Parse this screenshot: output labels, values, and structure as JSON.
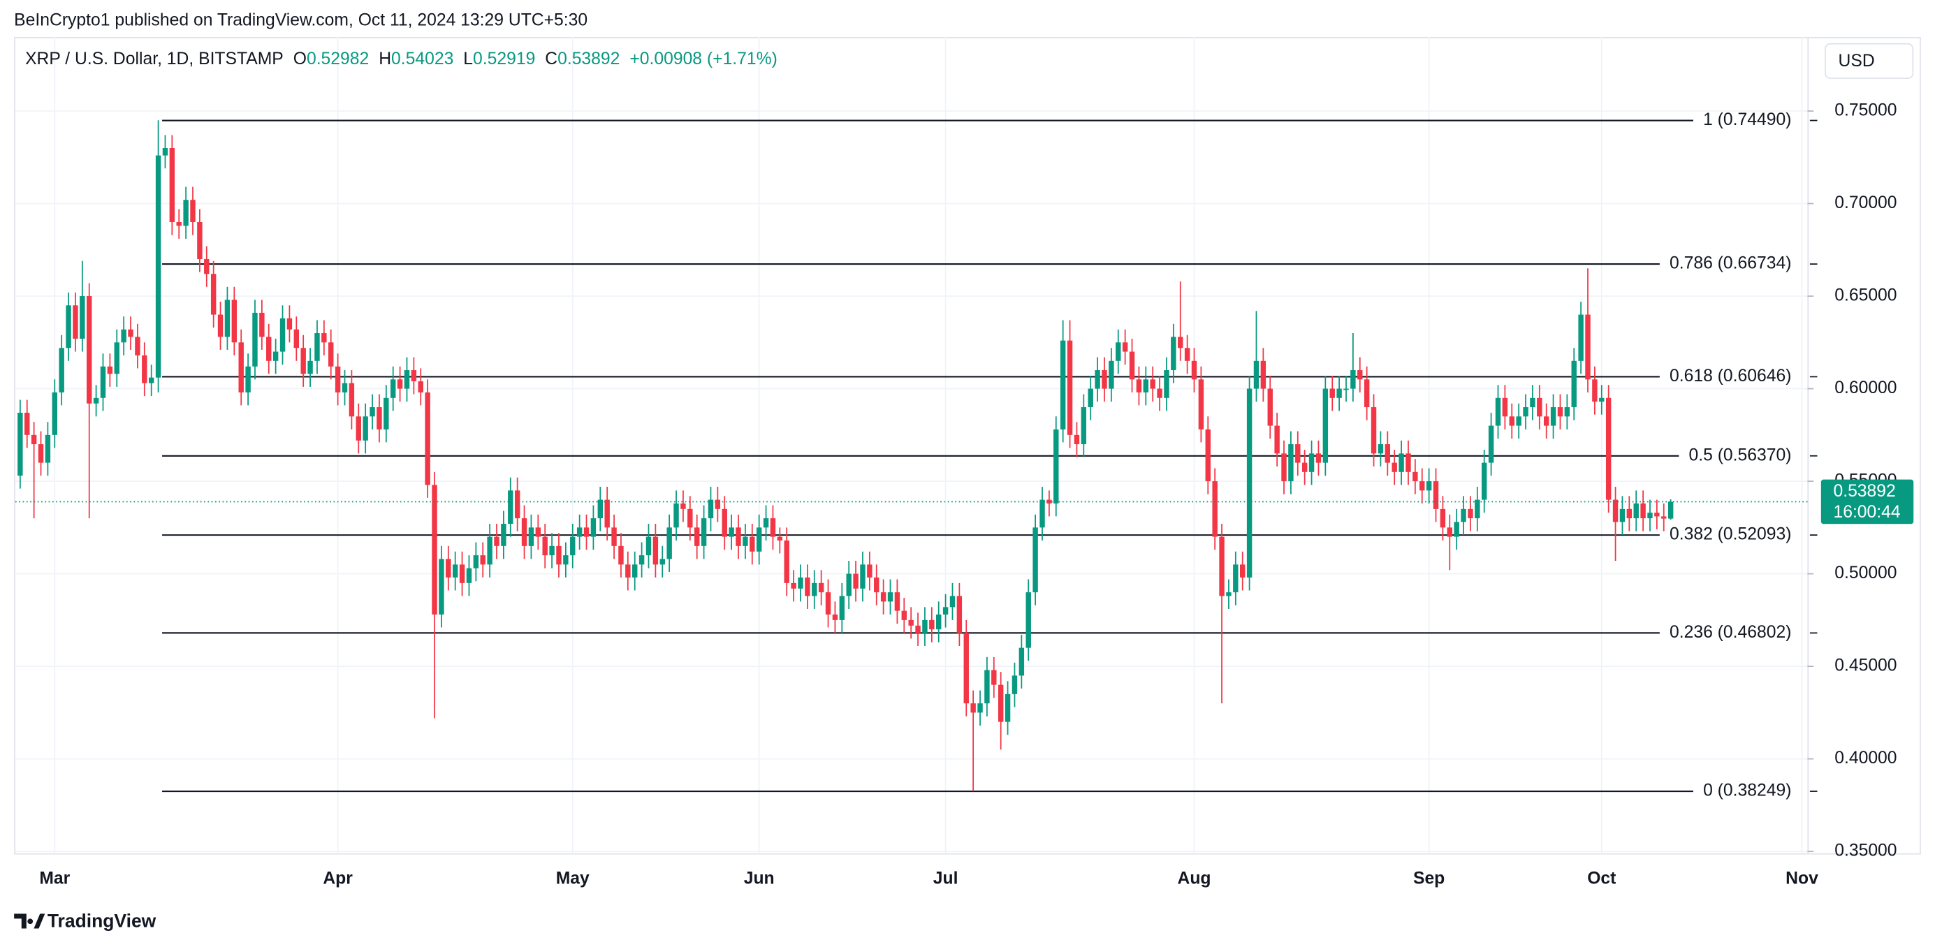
{
  "header": {
    "published": "BeInCrypto1 published on TradingView.com, Oct 11, 2024 13:29 UTC+5:30",
    "currency_button": "USD",
    "brand": "TradingView"
  },
  "legend": {
    "symbol": "XRP / U.S. Dollar, 1D, BITSTAMP",
    "o": "O",
    "h": "H",
    "l": "L",
    "c": "C",
    "change": "+0.00908 (+1.71%)"
  },
  "chart_data": {
    "type": "candlestick",
    "up_color": "#089981",
    "down_color": "#f23645",
    "xlim": [
      -0.7,
      258.8
    ],
    "xticks": [
      {
        "value": 5,
        "label": "Mar"
      },
      {
        "value": 46,
        "label": "Apr"
      },
      {
        "value": 80,
        "label": "May"
      },
      {
        "value": 107,
        "label": "Jun"
      },
      {
        "value": 134,
        "label": "Jul"
      },
      {
        "value": 170,
        "label": "Aug"
      },
      {
        "value": 204,
        "label": "Sep"
      },
      {
        "value": 229,
        "label": "Oct"
      },
      {
        "value": 258,
        "label": "Nov"
      }
    ],
    "ylim": [
      0.349,
      0.79
    ],
    "yticks": [
      {
        "value": 0.35,
        "label": "0.35000"
      },
      {
        "value": 0.4,
        "label": "0.40000"
      },
      {
        "value": 0.45,
        "label": "0.45000"
      },
      {
        "value": 0.5,
        "label": "0.50000"
      },
      {
        "value": 0.55,
        "label": "0.55000"
      },
      {
        "value": 0.6,
        "label": "0.60000"
      },
      {
        "value": 0.65,
        "label": "0.65000"
      },
      {
        "value": 0.7,
        "label": "0.70000"
      },
      {
        "value": 0.75,
        "label": "0.75000"
      }
    ],
    "grid": true,
    "fib_levels": [
      {
        "value": 0.7449,
        "label": "1 (0.74490)"
      },
      {
        "value": 0.66734,
        "label": "0.786 (0.66734)"
      },
      {
        "value": 0.60646,
        "label": "0.618 (0.60646)"
      },
      {
        "value": 0.5637,
        "label": "0.5 (0.56370)"
      },
      {
        "value": 0.52093,
        "label": "0.382 (0.52093)"
      },
      {
        "value": 0.46802,
        "label": "0.236 (0.46802)"
      },
      {
        "value": 0.38249,
        "label": "0 (0.38249)"
      }
    ],
    "countdown": "16:00:44",
    "close": [
      0.587,
      0.575,
      0.57,
      0.56,
      0.575,
      0.598,
      0.622,
      0.645,
      0.627,
      0.65,
      0.592,
      0.595,
      0.612,
      0.608,
      0.625,
      0.632,
      0.628,
      0.618,
      0.603,
      0.606,
      0.726,
      0.73,
      0.69,
      0.688,
      0.702,
      0.69,
      0.67,
      0.662,
      0.64,
      0.628,
      0.648,
      0.625,
      0.598,
      0.612,
      0.641,
      0.628,
      0.615,
      0.62,
      0.638,
      0.632,
      0.622,
      0.608,
      0.615,
      0.63,
      0.625,
      0.612,
      0.598,
      0.603,
      0.585,
      0.572,
      0.585,
      0.59,
      0.578,
      0.595,
      0.605,
      0.6,
      0.61,
      0.604,
      0.598,
      0.548,
      0.478,
      0.508,
      0.498,
      0.505,
      0.495,
      0.503,
      0.51,
      0.505,
      0.52,
      0.515,
      0.527,
      0.545,
      0.53,
      0.515,
      0.525,
      0.52,
      0.51,
      0.515,
      0.505,
      0.51,
      0.52,
      0.525,
      0.52,
      0.53,
      0.54,
      0.525,
      0.515,
      0.505,
      0.498,
      0.505,
      0.51,
      0.52,
      0.505,
      0.508,
      0.525,
      0.538,
      0.535,
      0.525,
      0.515,
      0.53,
      0.54,
      0.535,
      0.52,
      0.525,
      0.515,
      0.52,
      0.512,
      0.525,
      0.53,
      0.52,
      0.518,
      0.495,
      0.492,
      0.498,
      0.488,
      0.495,
      0.49,
      0.478,
      0.475,
      0.488,
      0.5,
      0.492,
      0.505,
      0.498,
      0.49,
      0.485,
      0.49,
      0.48,
      0.475,
      0.472,
      0.468,
      0.475,
      0.47,
      0.478,
      0.482,
      0.488,
      0.468,
      0.43,
      0.425,
      0.43,
      0.448,
      0.44,
      0.42,
      0.435,
      0.445,
      0.46,
      0.49,
      0.525,
      0.54,
      0.538,
      0.578,
      0.626,
      0.575,
      0.57,
      0.59,
      0.6,
      0.61,
      0.6,
      0.615,
      0.625,
      0.62,
      0.605,
      0.598,
      0.605,
      0.6,
      0.595,
      0.61,
      0.628,
      0.622,
      0.615,
      0.605,
      0.578,
      0.55,
      0.52,
      0.488,
      0.49,
      0.505,
      0.498,
      0.6,
      0.615,
      0.6,
      0.58,
      0.565,
      0.55,
      0.57,
      0.56,
      0.555,
      0.565,
      0.56,
      0.6,
      0.595,
      0.6,
      0.6,
      0.61,
      0.605,
      0.59,
      0.565,
      0.57,
      0.56,
      0.555,
      0.565,
      0.555,
      0.55,
      0.545,
      0.55,
      0.535,
      0.525,
      0.52,
      0.528,
      0.535,
      0.53,
      0.54,
      0.56,
      0.58,
      0.595,
      0.585,
      0.58,
      0.585,
      0.59,
      0.595,
      0.585,
      0.58,
      0.59,
      0.585,
      0.59,
      0.615,
      0.64,
      0.605,
      0.593,
      0.595,
      0.54,
      0.528,
      0.535,
      0.53,
      0.538,
      0.53,
      0.533,
      0.531,
      0.52982,
      0.53892
    ],
    "open": [
      0.553,
      0.587,
      0.575,
      0.57,
      0.56,
      0.575,
      0.598,
      0.622,
      0.645,
      0.627,
      0.65,
      0.592,
      0.595,
      0.612,
      0.608,
      0.625,
      0.632,
      0.628,
      0.618,
      0.603,
      0.606,
      0.726,
      0.73,
      0.69,
      0.688,
      0.702,
      0.69,
      0.67,
      0.662,
      0.64,
      0.628,
      0.648,
      0.625,
      0.598,
      0.612,
      0.641,
      0.628,
      0.615,
      0.62,
      0.638,
      0.632,
      0.622,
      0.608,
      0.615,
      0.63,
      0.625,
      0.612,
      0.598,
      0.603,
      0.585,
      0.572,
      0.585,
      0.59,
      0.578,
      0.595,
      0.605,
      0.6,
      0.61,
      0.604,
      0.598,
      0.548,
      0.478,
      0.508,
      0.498,
      0.505,
      0.495,
      0.503,
      0.51,
      0.505,
      0.52,
      0.515,
      0.527,
      0.545,
      0.53,
      0.515,
      0.525,
      0.52,
      0.51,
      0.515,
      0.505,
      0.51,
      0.52,
      0.525,
      0.52,
      0.53,
      0.54,
      0.525,
      0.515,
      0.505,
      0.498,
      0.505,
      0.51,
      0.52,
      0.505,
      0.508,
      0.525,
      0.538,
      0.535,
      0.525,
      0.515,
      0.53,
      0.54,
      0.535,
      0.52,
      0.525,
      0.515,
      0.52,
      0.512,
      0.525,
      0.53,
      0.52,
      0.518,
      0.495,
      0.492,
      0.498,
      0.488,
      0.495,
      0.49,
      0.478,
      0.475,
      0.488,
      0.5,
      0.492,
      0.505,
      0.498,
      0.49,
      0.485,
      0.49,
      0.48,
      0.475,
      0.472,
      0.468,
      0.475,
      0.47,
      0.478,
      0.482,
      0.488,
      0.468,
      0.43,
      0.425,
      0.43,
      0.448,
      0.44,
      0.42,
      0.435,
      0.445,
      0.46,
      0.49,
      0.525,
      0.54,
      0.538,
      0.578,
      0.626,
      0.575,
      0.57,
      0.59,
      0.6,
      0.61,
      0.6,
      0.615,
      0.625,
      0.62,
      0.605,
      0.598,
      0.605,
      0.6,
      0.595,
      0.61,
      0.628,
      0.622,
      0.615,
      0.605,
      0.578,
      0.55,
      0.52,
      0.488,
      0.49,
      0.505,
      0.498,
      0.6,
      0.615,
      0.6,
      0.58,
      0.565,
      0.55,
      0.57,
      0.56,
      0.555,
      0.565,
      0.56,
      0.6,
      0.595,
      0.6,
      0.6,
      0.61,
      0.605,
      0.59,
      0.565,
      0.57,
      0.56,
      0.555,
      0.565,
      0.555,
      0.55,
      0.545,
      0.55,
      0.535,
      0.525,
      0.52,
      0.528,
      0.535,
      0.53,
      0.54,
      0.56,
      0.58,
      0.595,
      0.585,
      0.58,
      0.585,
      0.59,
      0.595,
      0.585,
      0.58,
      0.59,
      0.585,
      0.59,
      0.615,
      0.64,
      0.605,
      0.593,
      0.595,
      0.54,
      0.528,
      0.535,
      0.53,
      0.538,
      0.53,
      0.533,
      0.531,
      0.52982
    ],
    "high": [
      0.594,
      0.594,
      0.582,
      0.577,
      0.582,
      0.605,
      0.629,
      0.652,
      0.652,
      0.669,
      0.657,
      0.602,
      0.619,
      0.619,
      0.632,
      0.639,
      0.639,
      0.635,
      0.625,
      0.613,
      0.745,
      0.737,
      0.737,
      0.697,
      0.709,
      0.709,
      0.697,
      0.677,
      0.669,
      0.647,
      0.655,
      0.655,
      0.632,
      0.619,
      0.648,
      0.648,
      0.635,
      0.627,
      0.645,
      0.645,
      0.639,
      0.629,
      0.622,
      0.637,
      0.637,
      0.632,
      0.619,
      0.61,
      0.61,
      0.592,
      0.592,
      0.597,
      0.597,
      0.602,
      0.612,
      0.612,
      0.617,
      0.617,
      0.611,
      0.605,
      0.555,
      0.515,
      0.515,
      0.512,
      0.512,
      0.51,
      0.517,
      0.517,
      0.527,
      0.527,
      0.534,
      0.552,
      0.552,
      0.537,
      0.532,
      0.532,
      0.527,
      0.522,
      0.522,
      0.517,
      0.527,
      0.532,
      0.532,
      0.537,
      0.547,
      0.547,
      0.532,
      0.522,
      0.512,
      0.512,
      0.517,
      0.527,
      0.527,
      0.515,
      0.532,
      0.545,
      0.545,
      0.542,
      0.532,
      0.537,
      0.547,
      0.547,
      0.542,
      0.532,
      0.532,
      0.527,
      0.527,
      0.532,
      0.537,
      0.537,
      0.525,
      0.525,
      0.502,
      0.505,
      0.505,
      0.502,
      0.502,
      0.497,
      0.485,
      0.495,
      0.507,
      0.507,
      0.512,
      0.512,
      0.505,
      0.497,
      0.497,
      0.497,
      0.487,
      0.482,
      0.479,
      0.482,
      0.482,
      0.485,
      0.489,
      0.495,
      0.495,
      0.475,
      0.437,
      0.437,
      0.455,
      0.455,
      0.447,
      0.442,
      0.452,
      0.467,
      0.497,
      0.532,
      0.547,
      0.545,
      0.585,
      0.637,
      0.637,
      0.582,
      0.597,
      0.607,
      0.617,
      0.617,
      0.622,
      0.632,
      0.632,
      0.627,
      0.612,
      0.612,
      0.612,
      0.607,
      0.617,
      0.635,
      0.658,
      0.629,
      0.622,
      0.612,
      0.585,
      0.557,
      0.527,
      0.497,
      0.512,
      0.512,
      0.607,
      0.642,
      0.622,
      0.607,
      0.587,
      0.572,
      0.577,
      0.577,
      0.567,
      0.572,
      0.572,
      0.607,
      0.607,
      0.607,
      0.607,
      0.63,
      0.617,
      0.612,
      0.597,
      0.577,
      0.577,
      0.567,
      0.572,
      0.572,
      0.562,
      0.557,
      0.557,
      0.557,
      0.542,
      0.532,
      0.535,
      0.542,
      0.542,
      0.547,
      0.567,
      0.587,
      0.602,
      0.602,
      0.592,
      0.592,
      0.597,
      0.602,
      0.602,
      0.592,
      0.597,
      0.597,
      0.597,
      0.622,
      0.647,
      0.665,
      0.612,
      0.602,
      0.602,
      0.547,
      0.542,
      0.542,
      0.545,
      0.545,
      0.54,
      0.54,
      0.538,
      0.54023
    ],
    "low": [
      0.546,
      0.568,
      0.53,
      0.553,
      0.553,
      0.568,
      0.591,
      0.615,
      0.62,
      0.62,
      0.53,
      0.585,
      0.588,
      0.601,
      0.601,
      0.618,
      0.621,
      0.611,
      0.596,
      0.596,
      0.598,
      0.719,
      0.683,
      0.681,
      0.681,
      0.683,
      0.663,
      0.655,
      0.633,
      0.621,
      0.621,
      0.618,
      0.591,
      0.591,
      0.605,
      0.621,
      0.608,
      0.608,
      0.613,
      0.625,
      0.615,
      0.601,
      0.601,
      0.608,
      0.618,
      0.605,
      0.591,
      0.591,
      0.578,
      0.565,
      0.565,
      0.578,
      0.571,
      0.571,
      0.588,
      0.593,
      0.593,
      0.597,
      0.591,
      0.541,
      0.422,
      0.471,
      0.491,
      0.491,
      0.488,
      0.488,
      0.496,
      0.498,
      0.498,
      0.508,
      0.508,
      0.52,
      0.523,
      0.508,
      0.508,
      0.513,
      0.503,
      0.503,
      0.498,
      0.498,
      0.503,
      0.513,
      0.513,
      0.513,
      0.523,
      0.518,
      0.508,
      0.498,
      0.491,
      0.491,
      0.498,
      0.503,
      0.498,
      0.498,
      0.501,
      0.518,
      0.528,
      0.518,
      0.508,
      0.508,
      0.523,
      0.528,
      0.513,
      0.513,
      0.508,
      0.508,
      0.505,
      0.505,
      0.518,
      0.513,
      0.511,
      0.488,
      0.485,
      0.485,
      0.481,
      0.481,
      0.483,
      0.471,
      0.468,
      0.468,
      0.481,
      0.485,
      0.485,
      0.491,
      0.483,
      0.478,
      0.478,
      0.473,
      0.468,
      0.465,
      0.461,
      0.461,
      0.463,
      0.463,
      0.471,
      0.475,
      0.461,
      0.423,
      0.3825,
      0.418,
      0.423,
      0.433,
      0.405,
      0.413,
      0.428,
      0.438,
      0.453,
      0.483,
      0.518,
      0.531,
      0.531,
      0.571,
      0.568,
      0.563,
      0.563,
      0.583,
      0.593,
      0.593,
      0.593,
      0.608,
      0.613,
      0.598,
      0.591,
      0.591,
      0.593,
      0.588,
      0.588,
      0.603,
      0.615,
      0.608,
      0.598,
      0.571,
      0.543,
      0.513,
      0.43,
      0.481,
      0.483,
      0.491,
      0.491,
      0.593,
      0.593,
      0.573,
      0.558,
      0.543,
      0.543,
      0.553,
      0.548,
      0.548,
      0.553,
      0.553,
      0.588,
      0.588,
      0.593,
      0.593,
      0.598,
      0.583,
      0.558,
      0.558,
      0.553,
      0.548,
      0.548,
      0.548,
      0.543,
      0.538,
      0.538,
      0.528,
      0.518,
      0.502,
      0.513,
      0.521,
      0.523,
      0.523,
      0.533,
      0.553,
      0.573,
      0.578,
      0.573,
      0.573,
      0.578,
      0.583,
      0.578,
      0.573,
      0.573,
      0.578,
      0.578,
      0.583,
      0.608,
      0.598,
      0.586,
      0.586,
      0.533,
      0.507,
      0.521,
      0.523,
      0.523,
      0.523,
      0.523,
      0.524,
      0.523,
      0.52919
    ]
  }
}
